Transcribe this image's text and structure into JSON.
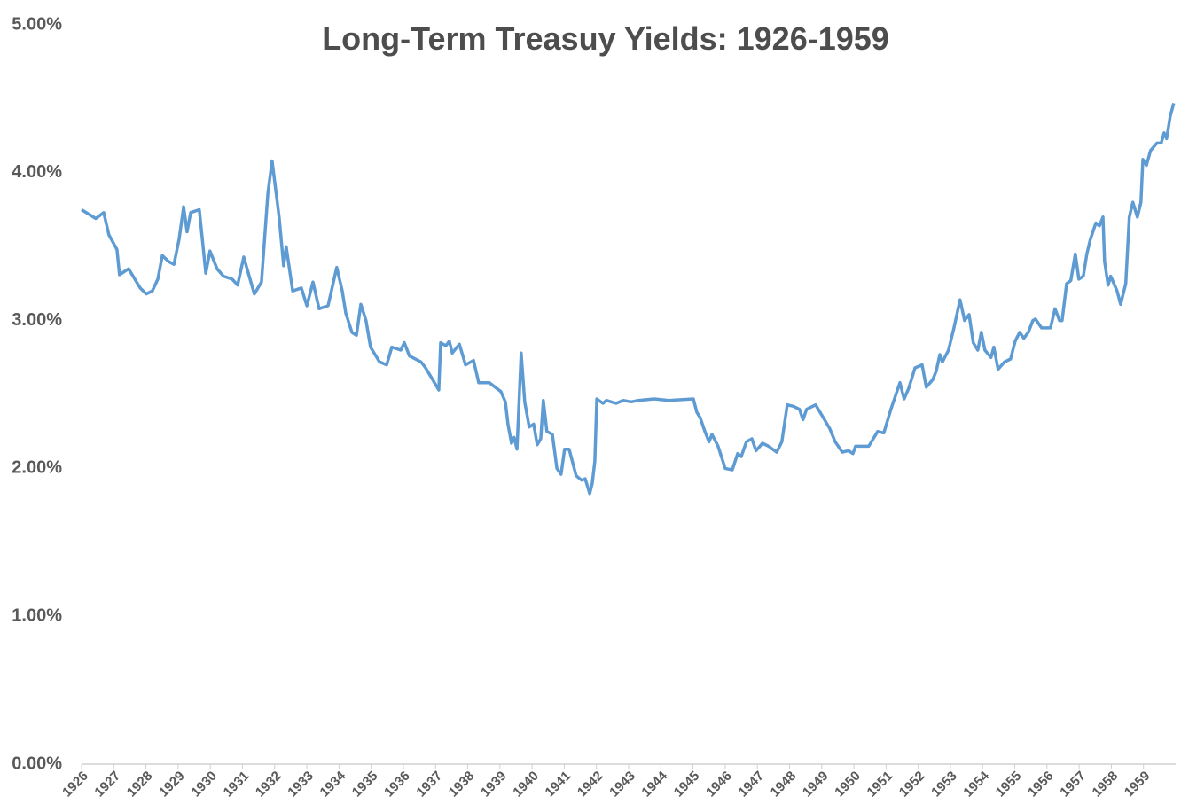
{
  "chart_data": {
    "type": "line",
    "title": "Long-Term Treasuy Yields: 1926-1959",
    "color": "#5f9bd3",
    "xlim": [
      1926,
      1960
    ],
    "xticks": [
      1926,
      1927,
      1928,
      1929,
      1930,
      1931,
      1932,
      1933,
      1934,
      1935,
      1936,
      1937,
      1938,
      1939,
      1940,
      1941,
      1942,
      1943,
      1944,
      1945,
      1946,
      1947,
      1948,
      1949,
      1950,
      1951,
      1952,
      1953,
      1954,
      1955,
      1956,
      1957,
      1958,
      1959
    ],
    "ylim": [
      0,
      5
    ],
    "yticks": [
      {
        "value": 0,
        "label": "0.00%"
      },
      {
        "value": 1,
        "label": "1.00%"
      },
      {
        "value": 2,
        "label": "2.00%"
      },
      {
        "value": 3,
        "label": "3.00%"
      },
      {
        "value": 4,
        "label": "4.00%"
      },
      {
        "value": 5,
        "label": "5.00%"
      }
    ],
    "x": [
      1926.0,
      1926.22,
      1926.44,
      1926.69,
      1926.85,
      1927.1,
      1927.18,
      1927.32,
      1927.46,
      1927.6,
      1927.82,
      1928.01,
      1928.2,
      1928.37,
      1928.51,
      1928.7,
      1928.87,
      1929.03,
      1929.17,
      1929.28,
      1929.39,
      1929.66,
      1929.86,
      1929.99,
      1930.21,
      1930.41,
      1930.68,
      1930.85,
      1931.04,
      1931.21,
      1931.37,
      1931.59,
      1931.79,
      1931.92,
      1932.14,
      1932.28,
      1932.36,
      1932.56,
      1932.83,
      1933.0,
      1933.19,
      1933.38,
      1933.66,
      1933.93,
      1934.1,
      1934.21,
      1934.4,
      1934.54,
      1934.68,
      1934.84,
      1934.98,
      1935.26,
      1935.48,
      1935.64,
      1935.92,
      1936.03,
      1936.19,
      1936.55,
      1936.69,
      1936.91,
      1937.1,
      1937.16,
      1937.32,
      1937.43,
      1937.52,
      1937.74,
      1937.93,
      1938.18,
      1938.34,
      1938.67,
      1939.03,
      1939.17,
      1939.25,
      1939.36,
      1939.44,
      1939.53,
      1939.66,
      1939.77,
      1939.91,
      1940.05,
      1940.16,
      1940.27,
      1940.35,
      1940.46,
      1940.63,
      1940.77,
      1940.9,
      1941.01,
      1941.15,
      1941.37,
      1941.54,
      1941.65,
      1941.79,
      1941.87,
      1941.95,
      1942.01,
      1942.2,
      1942.31,
      1942.61,
      1942.83,
      1943.08,
      1943.3,
      1943.8,
      1944.26,
      1945.01,
      1945.12,
      1945.23,
      1945.37,
      1945.5,
      1945.59,
      1945.78,
      1946.0,
      1946.22,
      1946.39,
      1946.5,
      1946.66,
      1946.83,
      1946.96,
      1947.16,
      1947.35,
      1947.6,
      1947.76,
      1947.93,
      1948.12,
      1948.31,
      1948.42,
      1948.53,
      1948.81,
      1949.03,
      1949.25,
      1949.42,
      1949.64,
      1949.83,
      1949.97,
      1950.05,
      1950.46,
      1950.74,
      1950.93,
      1951.15,
      1951.43,
      1951.56,
      1951.7,
      1951.9,
      1952.12,
      1952.25,
      1952.45,
      1952.56,
      1952.67,
      1952.75,
      1952.94,
      1953.11,
      1953.3,
      1953.44,
      1953.58,
      1953.71,
      1953.85,
      1953.96,
      1954.07,
      1954.26,
      1954.35,
      1954.48,
      1954.68,
      1954.87,
      1955.01,
      1955.15,
      1955.28,
      1955.42,
      1955.56,
      1955.64,
      1955.83,
      1956.11,
      1956.25,
      1956.39,
      1956.47,
      1956.61,
      1956.74,
      1956.88,
      1956.99,
      1957.13,
      1957.24,
      1957.35,
      1957.52,
      1957.63,
      1957.74,
      1957.79,
      1957.9,
      1957.98,
      1958.18,
      1958.29,
      1958.45,
      1958.56,
      1958.67,
      1958.81,
      1958.92,
      1958.98,
      1959.09,
      1959.22,
      1959.42,
      1959.55,
      1959.64,
      1959.72,
      1959.83,
      1959.94
    ],
    "values": [
      3.75,
      3.72,
      3.69,
      3.73,
      3.58,
      3.48,
      3.31,
      3.33,
      3.35,
      3.3,
      3.22,
      3.18,
      3.2,
      3.28,
      3.44,
      3.4,
      3.38,
      3.55,
      3.77,
      3.6,
      3.73,
      3.75,
      3.32,
      3.47,
      3.35,
      3.3,
      3.28,
      3.24,
      3.43,
      3.3,
      3.18,
      3.26,
      3.86,
      4.08,
      3.7,
      3.37,
      3.5,
      3.2,
      3.22,
      3.1,
      3.26,
      3.08,
      3.1,
      3.36,
      3.2,
      3.05,
      2.92,
      2.9,
      3.11,
      3.0,
      2.82,
      2.72,
      2.7,
      2.82,
      2.8,
      2.85,
      2.76,
      2.72,
      2.68,
      2.6,
      2.53,
      2.85,
      2.83,
      2.86,
      2.78,
      2.84,
      2.7,
      2.73,
      2.58,
      2.58,
      2.52,
      2.45,
      2.3,
      2.17,
      2.21,
      2.13,
      2.78,
      2.45,
      2.28,
      2.3,
      2.16,
      2.2,
      2.46,
      2.25,
      2.23,
      2.0,
      1.96,
      2.13,
      2.13,
      1.95,
      1.92,
      1.93,
      1.83,
      1.9,
      2.05,
      2.47,
      2.44,
      2.46,
      2.44,
      2.46,
      2.45,
      2.46,
      2.47,
      2.46,
      2.47,
      2.38,
      2.34,
      2.25,
      2.18,
      2.23,
      2.15,
      2.0,
      1.99,
      2.1,
      2.08,
      2.18,
      2.2,
      2.12,
      2.17,
      2.15,
      2.11,
      2.18,
      2.43,
      2.42,
      2.4,
      2.33,
      2.4,
      2.43,
      2.35,
      2.27,
      2.18,
      2.11,
      2.12,
      2.1,
      2.15,
      2.15,
      2.25,
      2.24,
      2.4,
      2.58,
      2.47,
      2.54,
      2.68,
      2.7,
      2.55,
      2.6,
      2.66,
      2.77,
      2.72,
      2.8,
      2.95,
      3.14,
      3.0,
      3.04,
      2.85,
      2.8,
      2.92,
      2.8,
      2.75,
      2.82,
      2.67,
      2.72,
      2.74,
      2.86,
      2.92,
      2.88,
      2.92,
      3.0,
      3.01,
      2.95,
      2.95,
      3.08,
      3.0,
      3.0,
      3.25,
      3.27,
      3.45,
      3.28,
      3.3,
      3.45,
      3.55,
      3.66,
      3.64,
      3.7,
      3.4,
      3.24,
      3.3,
      3.2,
      3.11,
      3.25,
      3.7,
      3.8,
      3.7,
      3.8,
      4.09,
      4.05,
      4.15,
      4.2,
      4.2,
      4.27,
      4.23,
      4.38,
      4.47
    ]
  }
}
